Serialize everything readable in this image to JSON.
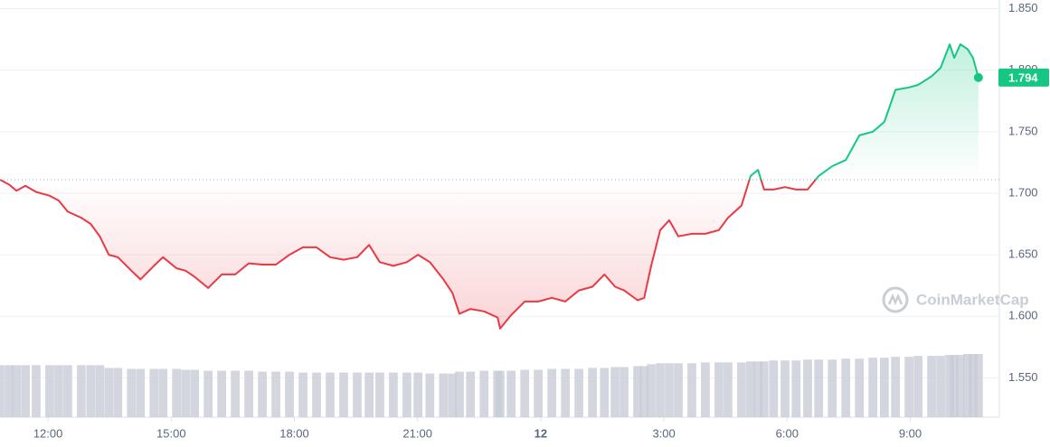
{
  "chart_data": {
    "type": "line",
    "x": [
      10.83,
      11.05,
      11.23,
      11.45,
      11.71,
      12.04,
      12.26,
      12.48,
      12.81,
      13.04,
      13.26,
      13.48,
      13.7,
      14.03,
      14.25,
      14.58,
      14.8,
      15.13,
      15.35,
      15.57,
      15.9,
      16.23,
      16.56,
      16.89,
      17.22,
      17.55,
      17.88,
      18.21,
      18.54,
      18.87,
      19.2,
      19.53,
      19.82,
      20.08,
      20.41,
      20.74,
      21.01,
      21.3,
      21.63,
      21.85,
      22.02,
      22.29,
      22.62,
      22.95,
      23.01,
      23.28,
      23.61,
      23.94,
      24.27,
      24.6,
      24.93,
      25.26,
      25.55,
      25.81,
      26.03,
      26.36,
      26.52,
      26.69,
      26.91,
      27.13,
      27.35,
      27.68,
      28.01,
      28.34,
      28.56,
      28.89,
      29.11,
      29.29,
      29.44,
      29.67,
      29.95,
      30.22,
      30.5,
      30.77,
      31.1,
      31.43,
      31.76,
      32.09,
      32.37,
      32.64,
      32.97,
      33.19,
      33.52,
      33.74,
      33.96,
      34.07,
      34.22,
      34.4,
      34.53,
      34.66
    ],
    "values": [
      1.711,
      1.707,
      1.702,
      1.706,
      1.701,
      1.698,
      1.694,
      1.685,
      1.68,
      1.675,
      1.665,
      1.65,
      1.648,
      1.637,
      1.63,
      1.641,
      1.648,
      1.639,
      1.637,
      1.632,
      1.623,
      1.634,
      1.634,
      1.643,
      1.642,
      1.642,
      1.65,
      1.656,
      1.656,
      1.648,
      1.646,
      1.648,
      1.658,
      1.644,
      1.641,
      1.644,
      1.65,
      1.644,
      1.63,
      1.619,
      1.602,
      1.606,
      1.604,
      1.599,
      1.59,
      1.601,
      1.612,
      1.612,
      1.615,
      1.612,
      1.621,
      1.624,
      1.634,
      1.624,
      1.621,
      1.613,
      1.615,
      1.641,
      1.67,
      1.678,
      1.665,
      1.667,
      1.667,
      1.67,
      1.68,
      1.69,
      1.714,
      1.719,
      1.703,
      1.703,
      1.705,
      1.703,
      1.703,
      1.714,
      1.722,
      1.727,
      1.747,
      1.75,
      1.758,
      1.784,
      1.786,
      1.788,
      1.795,
      1.802,
      1.821,
      1.81,
      1.821,
      1.817,
      1.81,
      1.794
    ],
    "volume": [
      56,
      56,
      56,
      56,
      56,
      56,
      56,
      56,
      56,
      56,
      56,
      53,
      53,
      52,
      52,
      52,
      52,
      52,
      51,
      51,
      50,
      50,
      50,
      50,
      49,
      49,
      49,
      48,
      48,
      48,
      48,
      48,
      48,
      48,
      48,
      48,
      48,
      47,
      47,
      47,
      49,
      49,
      50,
      50,
      50,
      50,
      51,
      51,
      52,
      52,
      52,
      53,
      53,
      54,
      54,
      55,
      55,
      57,
      58,
      58,
      58,
      58,
      59,
      59,
      59,
      59,
      60,
      60,
      60,
      61,
      61,
      61,
      62,
      62,
      62,
      63,
      63,
      64,
      64,
      65,
      65,
      66,
      66,
      66,
      67,
      67,
      67,
      68,
      68,
      68
    ],
    "baseline": 1.711,
    "current_price": 1.794,
    "up_color": "#16c784",
    "down_color": "#ea3943",
    "volume_color": "#c8ccd6",
    "xlim": [
      10.83,
      35.17
    ],
    "ylim": [
      1.518,
      1.857
    ],
    "xticks": [
      {
        "value": 12,
        "label": "12:00"
      },
      {
        "value": 15,
        "label": "15:00"
      },
      {
        "value": 18,
        "label": "18:00"
      },
      {
        "value": 21,
        "label": "21:00"
      },
      {
        "value": 24,
        "label": "12"
      },
      {
        "value": 27,
        "label": "3:00"
      },
      {
        "value": 30,
        "label": "6:00"
      },
      {
        "value": 33,
        "label": "9:00"
      }
    ],
    "yticks": [
      {
        "value": 1.55,
        "label": "1.550"
      },
      {
        "value": 1.6,
        "label": "1.600"
      },
      {
        "value": 1.65,
        "label": "1.650"
      },
      {
        "value": 1.7,
        "label": "1.700"
      },
      {
        "value": 1.75,
        "label": "1.750"
      },
      {
        "value": 1.8,
        "label": "1.800"
      },
      {
        "value": 1.85,
        "label": "1.850"
      }
    ],
    "grid": true,
    "watermark": "CoinMarketCap"
  }
}
